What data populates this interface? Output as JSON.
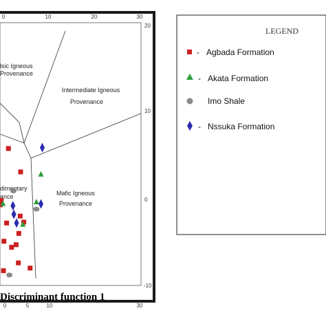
{
  "chart_data": {
    "type": "scatter",
    "title": "",
    "xlabel": "Discriminant function 1",
    "ylabel": "",
    "xlim": [
      -8,
      30
    ],
    "ylim": [
      -10,
      20
    ],
    "x_ticks_top": [
      "0",
      "10",
      "20",
      "30"
    ],
    "x_ticks_bottom": [
      "0",
      "5",
      "10",
      "",
      "30"
    ],
    "y_ticks_right": [
      "20",
      "10",
      "0",
      "-10"
    ],
    "grid": false,
    "fields": [
      {
        "label_lines": [
          "lsic Igneous",
          "Provenance"
        ]
      },
      {
        "label_lines": [
          "Intermediate Igneous",
          "Provenance"
        ]
      },
      {
        "label_lines": [
          "dimentary",
          "ance"
        ]
      },
      {
        "label_lines": [
          "Mafic Igneous",
          "Provenance"
        ]
      }
    ],
    "legend": {
      "title": "LEGEND",
      "placement": "right",
      "entries": [
        {
          "label": "Agbada Formation",
          "prefix": "-",
          "marker": "square",
          "color": "#cc1f1f"
        },
        {
          "label": "Akata Formation",
          "prefix": "-",
          "marker": "triangle",
          "color": "#2e9e3e"
        },
        {
          "label": "Imo Shale",
          "prefix": "",
          "marker": "circle",
          "color": "#8a8a8a"
        },
        {
          "label": "Nssuka Formation",
          "prefix": "-",
          "marker": "diamond",
          "color": "#2b2bb0"
        }
      ]
    },
    "series": [
      {
        "name": "Agbada Formation",
        "marker": "square",
        "color": "#cc1f1f",
        "points": [
          [
            0.8,
            5.8
          ],
          [
            3.5,
            3.1
          ],
          [
            -0.8,
            -0.2
          ],
          [
            3.4,
            -2.0
          ],
          [
            0.4,
            -2.8
          ],
          [
            4.2,
            -2.7
          ],
          [
            3.1,
            -4.0
          ],
          [
            -0.2,
            -4.9
          ],
          [
            2.5,
            -5.3
          ],
          [
            1.5,
            -5.6
          ],
          [
            3.0,
            -7.4
          ],
          [
            -0.3,
            -8.3
          ],
          [
            5.6,
            -8.0
          ],
          [
            -1.0,
            -0.7
          ]
        ]
      },
      {
        "name": "Akata Formation",
        "marker": "triangle",
        "color": "#2e9e3e",
        "points": [
          [
            8.0,
            2.8
          ],
          [
            7.0,
            -0.4
          ],
          [
            -0.4,
            -0.6
          ],
          [
            4.0,
            -3.0
          ]
        ]
      },
      {
        "name": "Imo Shale",
        "marker": "circle",
        "color": "#8a8a8a",
        "points": [
          [
            1.9,
            0.9
          ],
          [
            7.0,
            -1.2
          ],
          [
            1.0,
            -8.8
          ]
        ]
      },
      {
        "name": "Nssuka Formation",
        "marker": "diamond",
        "color": "#2b2bb0",
        "points": [
          [
            8.3,
            5.9
          ],
          [
            8.0,
            -0.6
          ],
          [
            1.8,
            -0.8
          ],
          [
            2.0,
            -1.8
          ],
          [
            2.6,
            -2.8
          ]
        ]
      }
    ]
  }
}
